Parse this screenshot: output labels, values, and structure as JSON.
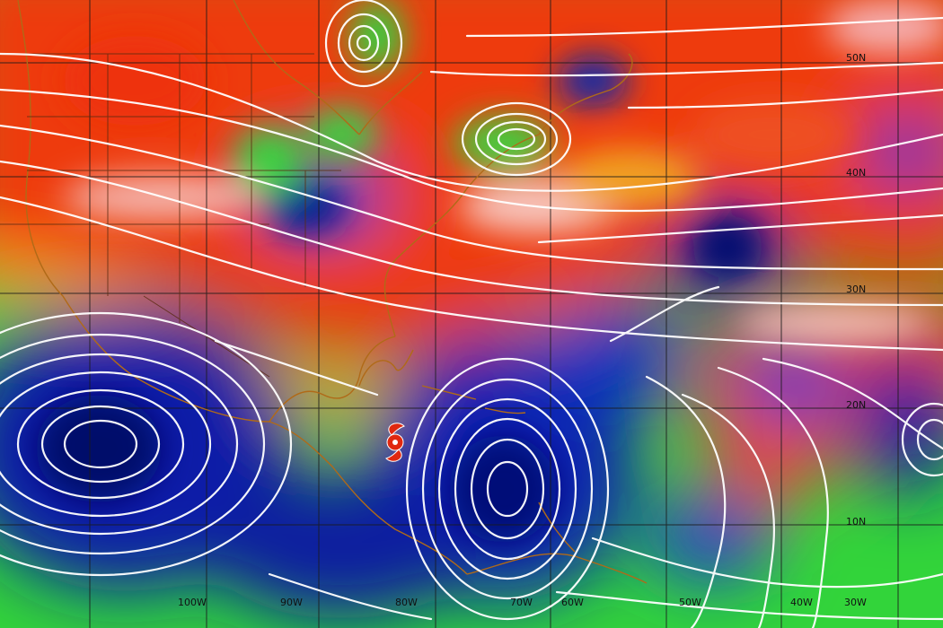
{
  "map": {
    "type": "wind-shear-streamline-analysis",
    "latitude_labels": [
      "50N",
      "40N",
      "30N",
      "20N",
      "10N"
    ],
    "longitude_labels": [
      "100W",
      "90W",
      "80W",
      "70W",
      "60W",
      "50W",
      "40W",
      "30W"
    ],
    "colors": {
      "low_shear": "#001a9a",
      "mid_shear": "#38e03a",
      "high_shear": "#ee2f08",
      "streamline": "#ffffff",
      "grid": "#1a1a1a",
      "coastline": "#b06a18",
      "storm_symbol": "#e02810"
    },
    "icons": [
      "hurricane-symbol-icon"
    ]
  }
}
